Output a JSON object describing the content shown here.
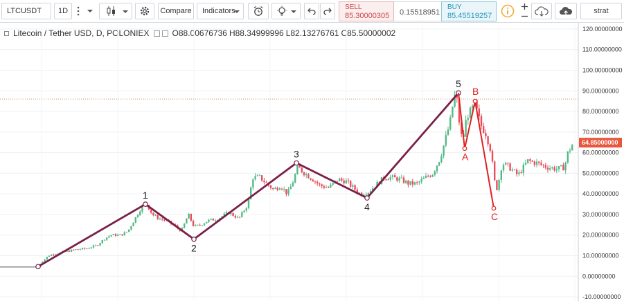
{
  "toolbar": {
    "symbol": "LTCUSDT",
    "interval": "1D",
    "compare_label": "Compare",
    "indicators_label": "Indicators",
    "sell": {
      "label": "SELL",
      "price": "85.30000305"
    },
    "spread": "0.15518951",
    "buy": {
      "label": "BUY",
      "price": "85.45519257"
    },
    "profile_label": "strat"
  },
  "legend": {
    "title": "Litecoin / Tether USD, D, POLONIEX",
    "open": "O88.00676736",
    "high": "H88.34999996",
    "low": "L82.13276761",
    "close": "C85.50000002"
  },
  "chart_data": {
    "type": "candlestick",
    "title": "Litecoin / Tether USD, D, POLONIEX",
    "ylim": [
      -12,
      123
    ],
    "y_ticks": [
      "120.00000000",
      "110.00000000",
      "100.00000000",
      "90.00000000",
      "80.00000000",
      "70.00000000",
      "60.00000000",
      "50.00000000",
      "40.00000000",
      "30.00000000",
      "20.00000000",
      "10.00000000",
      "0.00000000",
      "-10.00000000"
    ],
    "current_price_label": "64.85000000",
    "current_price": 64.85,
    "reference_line": 86,
    "colors": {
      "up": "#53b987",
      "down": "#eb4d5c",
      "wave": "#7a1f4a",
      "abc": "#e02020"
    },
    "price_path": [
      [
        0,
        4.5
      ],
      [
        30,
        4.5
      ],
      [
        55,
        4.7
      ],
      [
        58,
        6
      ],
      [
        62,
        7.5
      ],
      [
        70,
        10
      ],
      [
        80,
        11
      ],
      [
        95,
        12
      ],
      [
        110,
        13
      ],
      [
        125,
        13.5
      ],
      [
        140,
        15
      ],
      [
        150,
        18
      ],
      [
        160,
        20
      ],
      [
        175,
        20
      ],
      [
        185,
        22
      ],
      [
        195,
        28
      ],
      [
        205,
        34
      ],
      [
        212,
        35
      ],
      [
        220,
        30
      ],
      [
        230,
        28
      ],
      [
        240,
        27
      ],
      [
        250,
        25
      ],
      [
        262,
        22
      ],
      [
        272,
        30
      ],
      [
        280,
        24
      ],
      [
        290,
        25
      ],
      [
        300,
        27
      ],
      [
        315,
        28
      ],
      [
        330,
        31
      ],
      [
        345,
        28
      ],
      [
        358,
        35
      ],
      [
        365,
        48
      ],
      [
        375,
        48
      ],
      [
        385,
        45
      ],
      [
        395,
        42
      ],
      [
        405,
        44
      ],
      [
        415,
        40
      ],
      [
        422,
        45
      ],
      [
        430,
        53
      ],
      [
        440,
        50
      ],
      [
        452,
        47
      ],
      [
        462,
        44
      ],
      [
        475,
        43
      ],
      [
        488,
        47
      ],
      [
        500,
        46
      ],
      [
        510,
        43
      ],
      [
        520,
        40
      ],
      [
        532,
        41
      ],
      [
        545,
        45
      ],
      [
        555,
        48
      ],
      [
        565,
        48
      ],
      [
        578,
        47
      ],
      [
        590,
        45
      ],
      [
        602,
        45
      ],
      [
        615,
        48
      ],
      [
        625,
        50
      ],
      [
        635,
        57
      ],
      [
        642,
        65
      ],
      [
        650,
        75
      ],
      [
        656,
        88
      ],
      [
        660,
        85
      ],
      [
        664,
        72
      ],
      [
        668,
        65
      ],
      [
        674,
        78
      ],
      [
        680,
        80
      ],
      [
        686,
        84
      ],
      [
        690,
        78
      ],
      [
        695,
        73
      ],
      [
        702,
        69
      ],
      [
        708,
        62
      ],
      [
        712,
        52
      ],
      [
        716,
        41
      ],
      [
        720,
        46
      ],
      [
        725,
        55
      ],
      [
        735,
        53
      ],
      [
        748,
        49
      ],
      [
        762,
        56
      ],
      [
        775,
        55
      ],
      [
        790,
        53
      ],
      [
        805,
        52
      ],
      [
        815,
        53
      ],
      [
        820,
        60
      ],
      [
        828,
        64.85
      ]
    ],
    "elliott_waves": [
      {
        "label": "",
        "x": 55,
        "y": 4.7
      },
      {
        "label": "1",
        "x": 210,
        "y": 35
      },
      {
        "label": "2",
        "x": 280,
        "y": 18
      },
      {
        "label": "3",
        "x": 428,
        "y": 55
      },
      {
        "label": "4",
        "x": 530,
        "y": 38
      },
      {
        "label": "5",
        "x": 662,
        "y": 89
      }
    ],
    "abc_waves": [
      {
        "label": "A",
        "x": 671,
        "y": 62
      },
      {
        "label": "B",
        "x": 686,
        "y": 85
      },
      {
        "label": "C",
        "x": 713,
        "y": 33
      }
    ]
  }
}
